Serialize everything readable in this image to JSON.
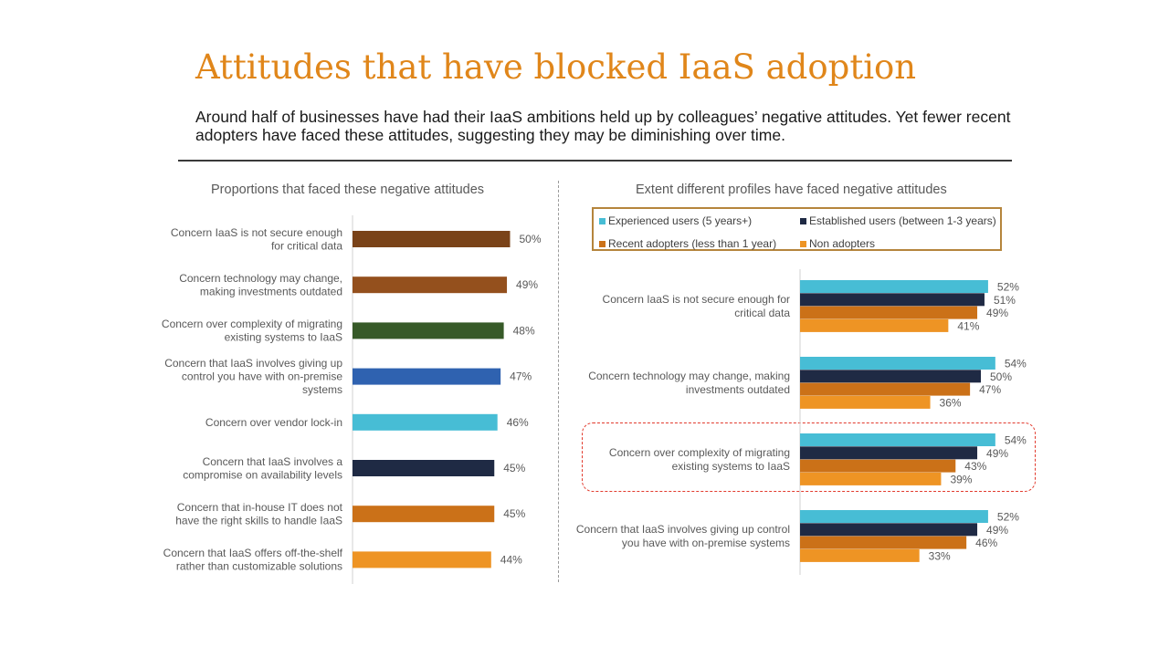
{
  "header": {
    "title": "Attitudes that have blocked IaaS adoption",
    "subtitle": "Around half of businesses have had their IaaS ambitions held up by colleagues’ negative attitudes. Yet fewer recent adopters have faced these attitudes, suggesting they may be diminishing over time."
  },
  "chart_data": [
    {
      "type": "bar",
      "orientation": "horizontal",
      "title": "Proportions that faced these negative attitudes",
      "categories": [
        [
          "Concern IaaS is not secure enough",
          "for critical data"
        ],
        [
          "Concern technology may change,",
          "making investments outdated"
        ],
        [
          "Concern over complexity of migrating",
          "existing systems to IaaS"
        ],
        [
          "Concern that IaaS involves giving up",
          "control you have with on-premise",
          "systems"
        ],
        [
          "Concern over vendor lock-in"
        ],
        [
          "Concern that IaaS involves a",
          "compromise on availability levels"
        ],
        [
          "Concern that in-house IT does not",
          "have the right skills to handle IaaS"
        ],
        [
          "Concern that IaaS offers off-the-shelf",
          "rather than customizable solutions"
        ]
      ],
      "values": [
        50,
        49,
        48,
        47,
        46,
        45,
        45,
        44
      ],
      "value_labels": [
        "50%",
        "49%",
        "48%",
        "47%",
        "46%",
        "45%",
        "45%",
        "44%"
      ],
      "bar_colors": [
        "#7A4319",
        "#94501D",
        "#375A28",
        "#2F62B0",
        "#47BDD5",
        "#1F2A44",
        "#CB7118",
        "#EE9424"
      ],
      "xlim": [
        0,
        100
      ]
    },
    {
      "type": "bar",
      "orientation": "horizontal",
      "title": "Extent different profiles have faced negative attitudes",
      "categories": [
        [
          "Concern IaaS is not secure enough for",
          "critical data"
        ],
        [
          "Concern technology may change, making",
          "investments outdated"
        ],
        [
          "Concern over complexity of migrating",
          "existing systems to IaaS"
        ],
        [
          "Concern that IaaS involves giving up control",
          "you have with on-premise systems"
        ]
      ],
      "series": [
        {
          "name": "Experienced users (5 years+)",
          "color": "#47BDD5",
          "values": [
            52,
            54,
            54,
            52
          ],
          "value_labels": [
            "52%",
            "54%",
            "54%",
            "52%"
          ]
        },
        {
          "name": "Established users (between 1-3 years)",
          "color": "#1F2A44",
          "values": [
            51,
            50,
            49,
            49
          ],
          "value_labels": [
            "51%",
            "50%",
            "49%",
            "49%"
          ]
        },
        {
          "name": "Recent adopters (less than 1 year)",
          "color": "#CB7118",
          "values": [
            49,
            47,
            43,
            46
          ],
          "value_labels": [
            "49%",
            "47%",
            "43%",
            "46%"
          ]
        },
        {
          "name": "Non adopters",
          "color": "#EE9424",
          "values": [
            41,
            36,
            39,
            33
          ],
          "value_labels": [
            "41%",
            "36%",
            "39%",
            "33%"
          ]
        }
      ],
      "highlighted_category_index": 2,
      "legend_position": "top",
      "xlim": [
        0,
        100
      ]
    }
  ]
}
